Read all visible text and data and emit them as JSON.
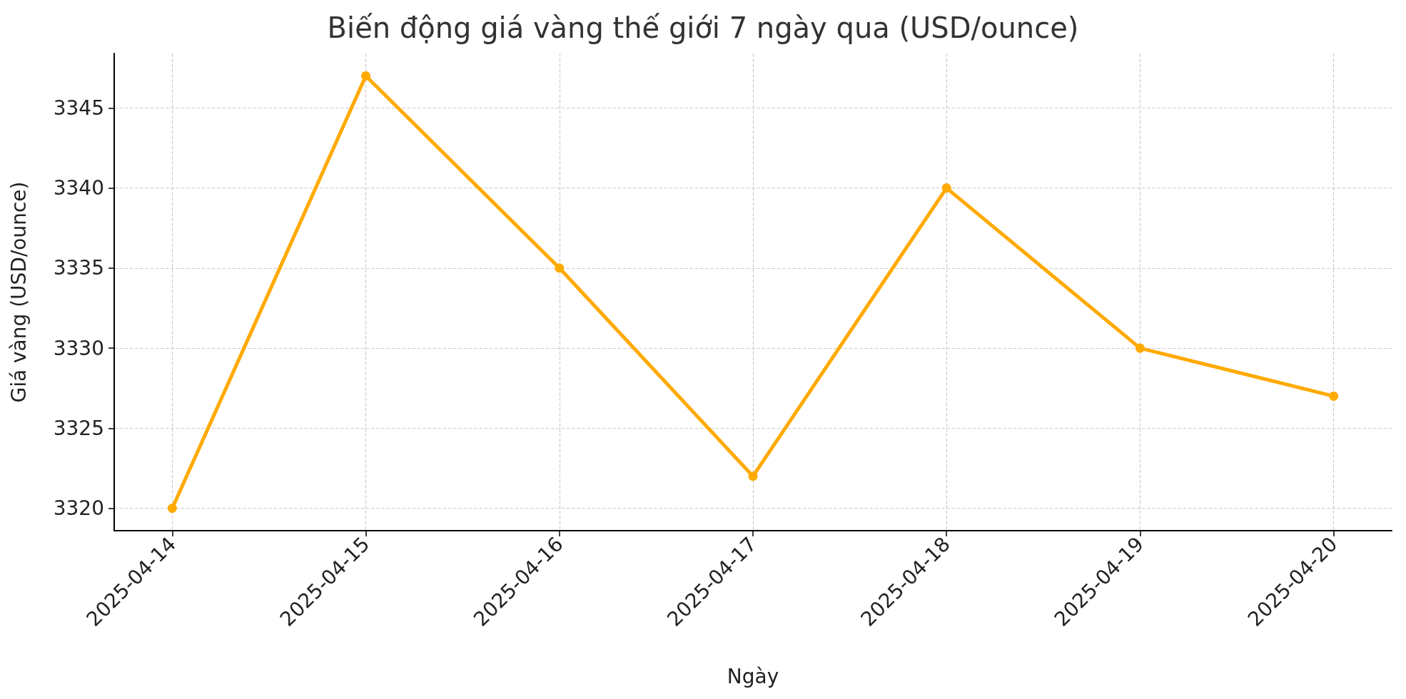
{
  "chart_data": {
    "type": "line",
    "title": "Biến động giá vàng thế giới 7 ngày qua (USD/ounce)",
    "xlabel": "Ngày",
    "ylabel": "Giá vàng (USD/ounce)",
    "categories": [
      "2025-04-14",
      "2025-04-15",
      "2025-04-16",
      "2025-04-17",
      "2025-04-18",
      "2025-04-19",
      "2025-04-20"
    ],
    "series": [
      {
        "color": "#ffaa00",
        "values": [
          3320,
          3347,
          3335,
          3322,
          3340,
          3330,
          3327
        ]
      }
    ],
    "ylim": [
      3318.6,
      3348.4
    ],
    "yticks": [
      3320,
      3325,
      3330,
      3335,
      3340,
      3345
    ],
    "grid": true,
    "marker": "circle",
    "line_style": "solid"
  }
}
